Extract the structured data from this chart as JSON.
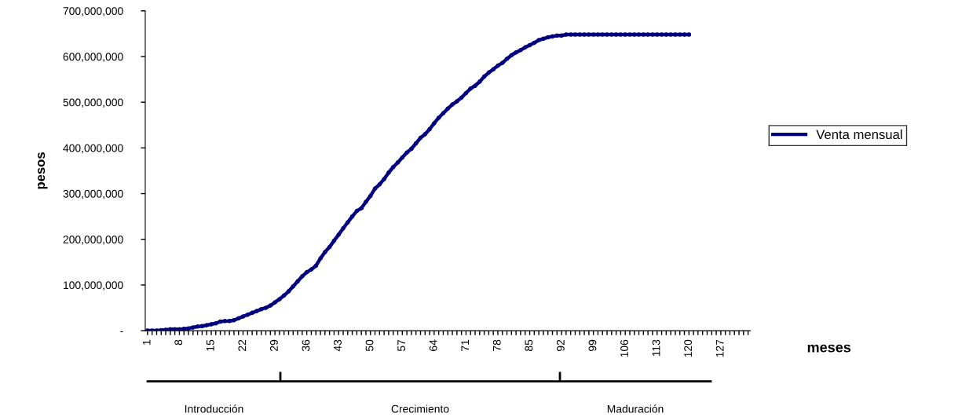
{
  "chart_data": {
    "type": "line",
    "xlabel": "meses",
    "ylabel": "pesos",
    "categories": [
      "1",
      null,
      null,
      null,
      null,
      null,
      null,
      "8",
      null,
      null,
      null,
      null,
      null,
      null,
      "15",
      null,
      null,
      null,
      null,
      null,
      null,
      "22",
      null,
      null,
      null,
      null,
      null,
      null,
      "29",
      null,
      null,
      null,
      null,
      null,
      null,
      "36",
      null,
      null,
      null,
      null,
      null,
      null,
      "43",
      null,
      null,
      null,
      null,
      null,
      null,
      "50",
      null,
      null,
      null,
      null,
      null,
      null,
      "57",
      null,
      null,
      null,
      null,
      null,
      null,
      "64",
      null,
      null,
      null,
      null,
      null,
      null,
      "71",
      null,
      null,
      null,
      null,
      null,
      null,
      "78",
      null,
      null,
      null,
      null,
      null,
      null,
      "85",
      null,
      null,
      null,
      null,
      null,
      null,
      "92",
      null,
      null,
      null,
      null,
      null,
      null,
      "99",
      null,
      null,
      null,
      null,
      null,
      null,
      "106",
      null,
      null,
      null,
      null,
      null,
      null,
      "113",
      null,
      null,
      null,
      null,
      null,
      null,
      "120",
      null,
      null,
      null,
      null,
      null,
      null,
      "127",
      null,
      null,
      null,
      null,
      null,
      null
    ],
    "series": [
      {
        "name": "Venta mensual",
        "color": "#000080",
        "values": [
          0,
          0,
          0,
          1000000,
          2000000,
          3000000,
          3000000,
          3000000,
          4000000,
          5000000,
          7000000,
          9000000,
          10000000,
          12000000,
          14000000,
          16000000,
          20000000,
          21000000,
          21000000,
          23000000,
          27000000,
          31000000,
          35000000,
          39000000,
          43000000,
          47000000,
          50000000,
          55000000,
          62000000,
          69000000,
          77000000,
          86000000,
          97000000,
          108000000,
          119000000,
          128000000,
          134000000,
          142000000,
          158000000,
          172000000,
          183000000,
          197000000,
          210000000,
          224000000,
          237000000,
          250000000,
          262000000,
          268000000,
          282000000,
          295000000,
          311000000,
          320000000,
          332000000,
          346000000,
          358000000,
          368000000,
          379000000,
          390000000,
          398000000,
          410000000,
          422000000,
          430000000,
          441000000,
          454000000,
          466000000,
          476000000,
          486000000,
          495000000,
          502000000,
          510000000,
          520000000,
          530000000,
          536000000,
          545000000,
          556000000,
          565000000,
          572000000,
          580000000,
          586000000,
          595000000,
          603000000,
          609000000,
          614000000,
          620000000,
          625000000,
          630000000,
          636000000,
          639000000,
          642000000,
          644000000,
          646000000,
          646000000,
          648000000,
          648000000,
          648000000,
          648000000,
          648000000,
          648000000,
          648000000,
          648000000,
          648000000,
          648000000,
          648000000,
          648000000,
          648000000,
          648000000,
          648000000,
          648000000,
          648000000,
          648000000,
          648000000,
          648000000,
          648000000,
          648000000,
          648000000,
          648000000,
          648000000,
          648000000,
          648000000,
          648000000,
          null,
          null,
          null,
          null,
          null,
          null,
          null,
          null,
          null,
          null,
          null,
          null,
          null
        ]
      }
    ],
    "ylim": [
      0,
      700000000
    ],
    "yticks": [
      {
        "value": 0,
        "label": "-"
      },
      {
        "value": 100000000,
        "label": "100,000,000"
      },
      {
        "value": 200000000,
        "label": "200,000,000"
      },
      {
        "value": 300000000,
        "label": "300,000,000"
      },
      {
        "value": 400000000,
        "label": "400,000,000"
      },
      {
        "value": 500000000,
        "label": "500,000,000"
      },
      {
        "value": 600000000,
        "label": "600,000,000"
      },
      {
        "value": 700000000,
        "label": "700,000,000"
      }
    ],
    "grid": false,
    "legend": "right",
    "marker": "circle",
    "line_style": "solid",
    "annotations": [
      "Introducción",
      "Crecimiento",
      "Maduración"
    ]
  }
}
